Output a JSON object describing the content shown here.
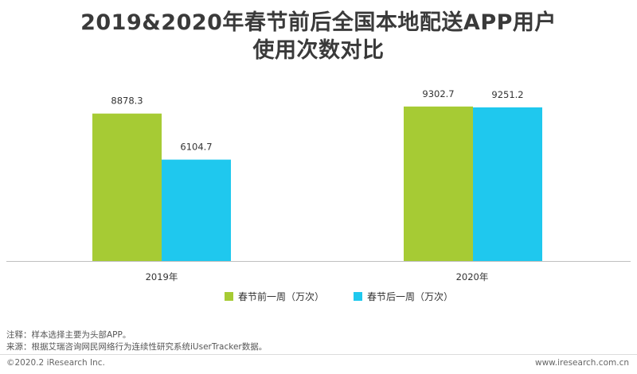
{
  "title_line1": "2019&2020年春节前后全国本地配送APP用户",
  "title_line2": "使用次数对比",
  "chart_data": {
    "type": "bar",
    "categories": [
      "2019年",
      "2020年"
    ],
    "series": [
      {
        "name": "春节前一周（万次）",
        "values": [
          8878.3,
          9302.7
        ],
        "labels": [
          "8878.3",
          "9302.7"
        ],
        "color": "#a6cb34"
      },
      {
        "name": "春节后一周（万次）",
        "values": [
          6104.7,
          9251.2
        ],
        "labels": [
          "6104.7",
          "9251.2"
        ],
        "color": "#1fc8ee"
      }
    ],
    "ylim": [
      0,
      11500
    ],
    "grid": false,
    "legend_position": "bottom"
  },
  "notes": {
    "line1": "注释：样本选择主要为头部APP。",
    "line2": "来源：根据艾瑞咨询网民网络行为连续性研究系统iUserTracker数据。"
  },
  "footer": {
    "left": "©2020.2  iResearch Inc.",
    "right": "www.iresearch.com.cn"
  }
}
